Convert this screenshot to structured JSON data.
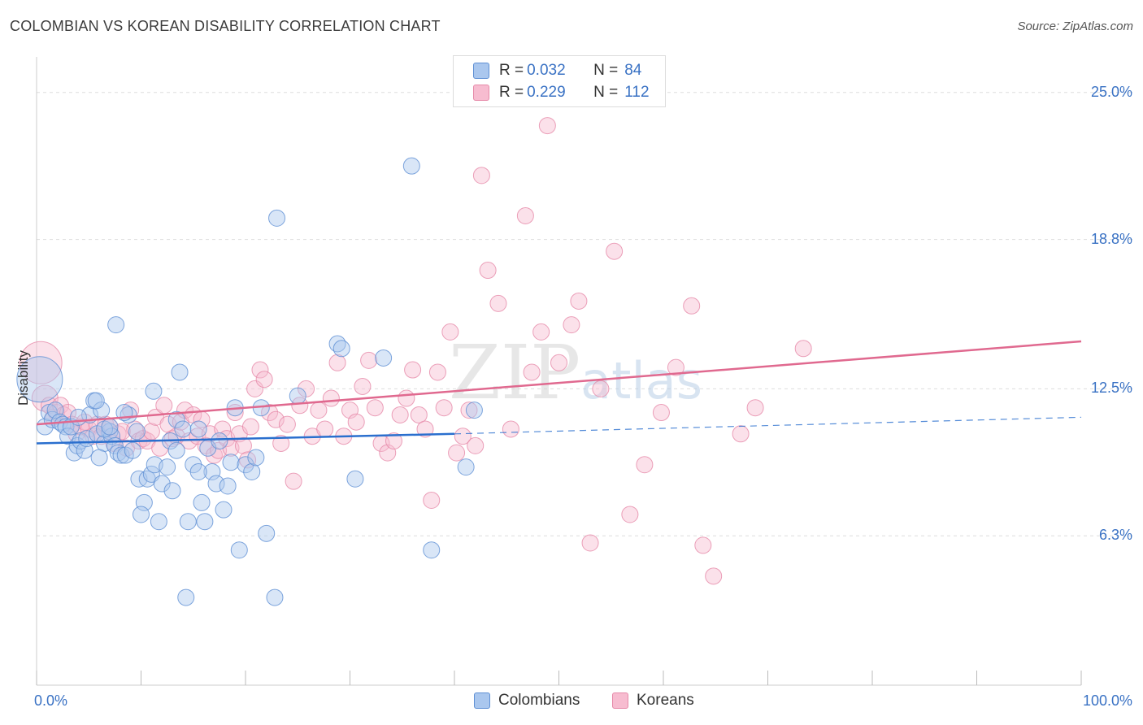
{
  "title": "COLOMBIAN VS KOREAN DISABILITY CORRELATION CHART",
  "source": "Source: ZipAtlas.com",
  "legend": {
    "series1": {
      "r_label": "R = ",
      "r_value": "0.032",
      "n_label": "N = ",
      "n_value": "84"
    },
    "series2": {
      "r_label": "R = ",
      "r_value": "0.229",
      "n_label": "N = ",
      "n_value": "112"
    }
  },
  "colors": {
    "colombians_fill": "#aac7ee",
    "colombians_stroke": "#5f90d4",
    "colombians_line": "#2a6fce",
    "koreans_fill": "#f7bcd0",
    "koreans_stroke": "#e68aa9",
    "koreans_line": "#e0698f",
    "tick_text": "#3a72c4",
    "grid": "#dddddd"
  },
  "watermark": "ZIPatlas",
  "chart_data": {
    "type": "scatter",
    "title": "COLOMBIAN VS KOREAN DISABILITY CORRELATION CHART",
    "xlabel": "",
    "ylabel": "Disability",
    "xlim": [
      0,
      100
    ],
    "ylim": [
      0,
      26.5
    ],
    "x_ticks": [
      0,
      10,
      20,
      30,
      40,
      50,
      60,
      70,
      80,
      90,
      100
    ],
    "x_tick_labels": {
      "0": "0.0%",
      "100": "100.0%"
    },
    "y_ticks": [
      6.3,
      12.5,
      18.8,
      25.0
    ],
    "y_tick_labels": [
      "6.3%",
      "12.5%",
      "18.8%",
      "25.0%"
    ],
    "grid": true,
    "legend_position": "top-center",
    "series": [
      {
        "name": "Colombians",
        "R": 0.032,
        "N": 84,
        "trend": {
          "x0": 0,
          "y0": 10.2,
          "x1": 40,
          "y1": 10.6,
          "dashed_to": 100,
          "y_end": 11.3
        },
        "points": [
          [
            0.3,
            12.9,
            28
          ],
          [
            0.8,
            10.9,
            10
          ],
          [
            1.2,
            11.5,
            10
          ],
          [
            1.5,
            11.2,
            10
          ],
          [
            1.8,
            11.6,
            10
          ],
          [
            2.2,
            11.1,
            10
          ],
          [
            2.5,
            11.0,
            10
          ],
          [
            2.8,
            10.9,
            10
          ],
          [
            3.0,
            10.5,
            10
          ],
          [
            3.3,
            10.9,
            10
          ],
          [
            3.6,
            9.8,
            10
          ],
          [
            3.9,
            10.1,
            10
          ],
          [
            4.2,
            10.3,
            10
          ],
          [
            4.6,
            9.9,
            10
          ],
          [
            4.8,
            10.4,
            10
          ],
          [
            5.1,
            11.4,
            10
          ],
          [
            5.5,
            12.0,
            10
          ],
          [
            5.8,
            10.6,
            10
          ],
          [
            6.2,
            11.6,
            10
          ],
          [
            6.5,
            10.2,
            10
          ],
          [
            5.7,
            12.0,
            10
          ],
          [
            7.0,
            10.7,
            10
          ],
          [
            7.2,
            10.5,
            10
          ],
          [
            7.5,
            10.1,
            10
          ],
          [
            7.8,
            9.8,
            10
          ],
          [
            8.1,
            9.7,
            10
          ],
          [
            8.5,
            9.7,
            10
          ],
          [
            8.8,
            11.4,
            10
          ],
          [
            9.2,
            9.9,
            10
          ],
          [
            9.6,
            10.7,
            10
          ],
          [
            6.0,
            9.6,
            10
          ],
          [
            6.5,
            10.8,
            10
          ],
          [
            7.0,
            10.9,
            10
          ],
          [
            7.6,
            15.2,
            10
          ],
          [
            8.4,
            11.5,
            10
          ],
          [
            9.8,
            8.7,
            10
          ],
          [
            10.3,
            7.7,
            10
          ],
          [
            10.6,
            8.7,
            10
          ],
          [
            11.0,
            8.9,
            10
          ],
          [
            11.3,
            9.3,
            10
          ],
          [
            11.7,
            6.9,
            10
          ],
          [
            10.0,
            7.2,
            10
          ],
          [
            12.0,
            8.5,
            10
          ],
          [
            12.5,
            9.2,
            10
          ],
          [
            12.8,
            10.3,
            10
          ],
          [
            13.0,
            8.2,
            10
          ],
          [
            13.4,
            11.2,
            10
          ],
          [
            13.7,
            13.2,
            10
          ],
          [
            14.0,
            10.8,
            10
          ],
          [
            11.2,
            12.4,
            10
          ],
          [
            14.3,
            3.7,
            10
          ],
          [
            14.5,
            6.9,
            10
          ],
          [
            15.0,
            9.3,
            10
          ],
          [
            15.5,
            10.8,
            10
          ],
          [
            15.8,
            7.7,
            10
          ],
          [
            16.1,
            6.9,
            10
          ],
          [
            16.4,
            10.0,
            10
          ],
          [
            16.8,
            9.0,
            10
          ],
          [
            17.2,
            8.5,
            10
          ],
          [
            17.5,
            10.3,
            10
          ],
          [
            17.9,
            7.4,
            10
          ],
          [
            18.3,
            8.4,
            10
          ],
          [
            18.6,
            9.4,
            10
          ],
          [
            13.4,
            9.9,
            10
          ],
          [
            15.5,
            9.0,
            10
          ],
          [
            19.0,
            11.7,
            10
          ],
          [
            19.4,
            5.7,
            10
          ],
          [
            20.0,
            9.3,
            10
          ],
          [
            20.6,
            9.0,
            10
          ],
          [
            21.0,
            9.6,
            10
          ],
          [
            21.5,
            11.7,
            10
          ],
          [
            22.0,
            6.4,
            10
          ],
          [
            22.8,
            3.7,
            10
          ],
          [
            23.0,
            19.7,
            10
          ],
          [
            25.0,
            12.2,
            10
          ],
          [
            28.8,
            14.4,
            10
          ],
          [
            29.2,
            14.2,
            10
          ],
          [
            30.5,
            8.7,
            10
          ],
          [
            33.2,
            13.8,
            10
          ],
          [
            35.9,
            21.9,
            10
          ],
          [
            37.8,
            5.7,
            10
          ],
          [
            41.1,
            9.2,
            10
          ],
          [
            41.9,
            11.6,
            10
          ],
          [
            4.0,
            11.3,
            10
          ]
        ]
      },
      {
        "name": "Koreans",
        "R": 0.229,
        "N": 112,
        "trend": {
          "x0": 0,
          "y0": 11.0,
          "x1": 100,
          "y1": 14.5
        },
        "points": [
          [
            0.4,
            13.6,
            26
          ],
          [
            0.8,
            12.1,
            16
          ],
          [
            1.2,
            11.8,
            10
          ],
          [
            1.6,
            11.3,
            10
          ],
          [
            1.9,
            11.5,
            10
          ],
          [
            2.3,
            11.8,
            10
          ],
          [
            2.6,
            11.4,
            10
          ],
          [
            3.0,
            11.5,
            10
          ],
          [
            3.4,
            11.0,
            10
          ],
          [
            3.8,
            10.6,
            10
          ],
          [
            4.2,
            10.9,
            10
          ],
          [
            4.6,
            11.1,
            10
          ],
          [
            5.0,
            10.8,
            10
          ],
          [
            5.4,
            10.5,
            10
          ],
          [
            5.8,
            11.0,
            10
          ],
          [
            6.2,
            10.5,
            10
          ],
          [
            6.6,
            11.0,
            10
          ],
          [
            7.0,
            10.9,
            10
          ],
          [
            7.4,
            10.2,
            10
          ],
          [
            7.8,
            10.6,
            10
          ],
          [
            8.2,
            10.7,
            10
          ],
          [
            8.6,
            10.0,
            10
          ],
          [
            9.0,
            11.6,
            10
          ],
          [
            9.4,
            10.8,
            10
          ],
          [
            9.8,
            10.3,
            10
          ],
          [
            10.2,
            10.4,
            10
          ],
          [
            10.6,
            10.3,
            10
          ],
          [
            11.0,
            10.7,
            10
          ],
          [
            11.4,
            11.3,
            10
          ],
          [
            11.8,
            10.0,
            10
          ],
          [
            12.2,
            11.8,
            10
          ],
          [
            12.6,
            11.0,
            10
          ],
          [
            13.0,
            10.4,
            10
          ],
          [
            13.4,
            10.5,
            10
          ],
          [
            13.8,
            11.1,
            10
          ],
          [
            14.2,
            11.6,
            10
          ],
          [
            14.6,
            10.3,
            10
          ],
          [
            15.0,
            11.4,
            10
          ],
          [
            15.4,
            10.5,
            10
          ],
          [
            15.8,
            11.2,
            10
          ],
          [
            16.2,
            10.1,
            10
          ],
          [
            16.6,
            10.6,
            10
          ],
          [
            17.0,
            9.7,
            10
          ],
          [
            17.4,
            9.9,
            10
          ],
          [
            17.8,
            10.8,
            10
          ],
          [
            18.2,
            10.4,
            10
          ],
          [
            18.6,
            10.0,
            10
          ],
          [
            19.0,
            11.5,
            10
          ],
          [
            19.4,
            10.6,
            10
          ],
          [
            19.8,
            10.1,
            10
          ],
          [
            20.2,
            9.5,
            10
          ],
          [
            20.5,
            10.9,
            10
          ],
          [
            20.9,
            12.5,
            10
          ],
          [
            21.4,
            13.3,
            10
          ],
          [
            21.8,
            12.9,
            10
          ],
          [
            22.3,
            11.5,
            10
          ],
          [
            22.9,
            11.2,
            10
          ],
          [
            23.4,
            10.2,
            10
          ],
          [
            24.0,
            11.0,
            10
          ],
          [
            24.6,
            8.6,
            10
          ],
          [
            25.2,
            11.8,
            10
          ],
          [
            25.8,
            12.5,
            10
          ],
          [
            26.4,
            10.5,
            10
          ],
          [
            27.0,
            11.6,
            10
          ],
          [
            27.6,
            10.8,
            10
          ],
          [
            28.2,
            12.1,
            10
          ],
          [
            28.8,
            13.6,
            10
          ],
          [
            29.4,
            10.5,
            10
          ],
          [
            30.0,
            11.6,
            10
          ],
          [
            30.6,
            11.1,
            10
          ],
          [
            31.2,
            12.6,
            10
          ],
          [
            31.8,
            13.7,
            10
          ],
          [
            32.4,
            11.7,
            10
          ],
          [
            33.0,
            10.2,
            10
          ],
          [
            33.6,
            9.8,
            10
          ],
          [
            34.2,
            10.3,
            10
          ],
          [
            34.8,
            11.4,
            10
          ],
          [
            35.4,
            12.1,
            10
          ],
          [
            36.0,
            13.3,
            10
          ],
          [
            36.6,
            11.4,
            10
          ],
          [
            37.2,
            10.8,
            10
          ],
          [
            37.8,
            7.8,
            10
          ],
          [
            38.4,
            13.2,
            10
          ],
          [
            39.0,
            11.7,
            10
          ],
          [
            39.6,
            14.9,
            10
          ],
          [
            40.2,
            9.8,
            10
          ],
          [
            40.8,
            10.5,
            10
          ],
          [
            41.4,
            11.6,
            10
          ],
          [
            42.0,
            10.1,
            10
          ],
          [
            42.6,
            21.5,
            10
          ],
          [
            43.2,
            17.5,
            10
          ],
          [
            44.2,
            16.1,
            10
          ],
          [
            45.4,
            10.8,
            10
          ],
          [
            46.8,
            19.8,
            10
          ],
          [
            47.4,
            13.2,
            10
          ],
          [
            48.3,
            14.9,
            10
          ],
          [
            48.9,
            23.6,
            10
          ],
          [
            50.0,
            13.6,
            10
          ],
          [
            51.2,
            15.2,
            10
          ],
          [
            51.9,
            16.2,
            10
          ],
          [
            53.0,
            6.0,
            10
          ],
          [
            54.0,
            12.5,
            10
          ],
          [
            55.3,
            18.3,
            10
          ],
          [
            56.8,
            7.2,
            10
          ],
          [
            58.2,
            9.3,
            10
          ],
          [
            59.8,
            11.5,
            10
          ],
          [
            61.2,
            13.4,
            10
          ],
          [
            62.7,
            16.0,
            10
          ],
          [
            63.8,
            5.9,
            10
          ],
          [
            64.8,
            4.6,
            10
          ],
          [
            67.4,
            10.6,
            10
          ],
          [
            68.8,
            11.7,
            10
          ],
          [
            73.4,
            14.2,
            10
          ]
        ]
      }
    ]
  }
}
